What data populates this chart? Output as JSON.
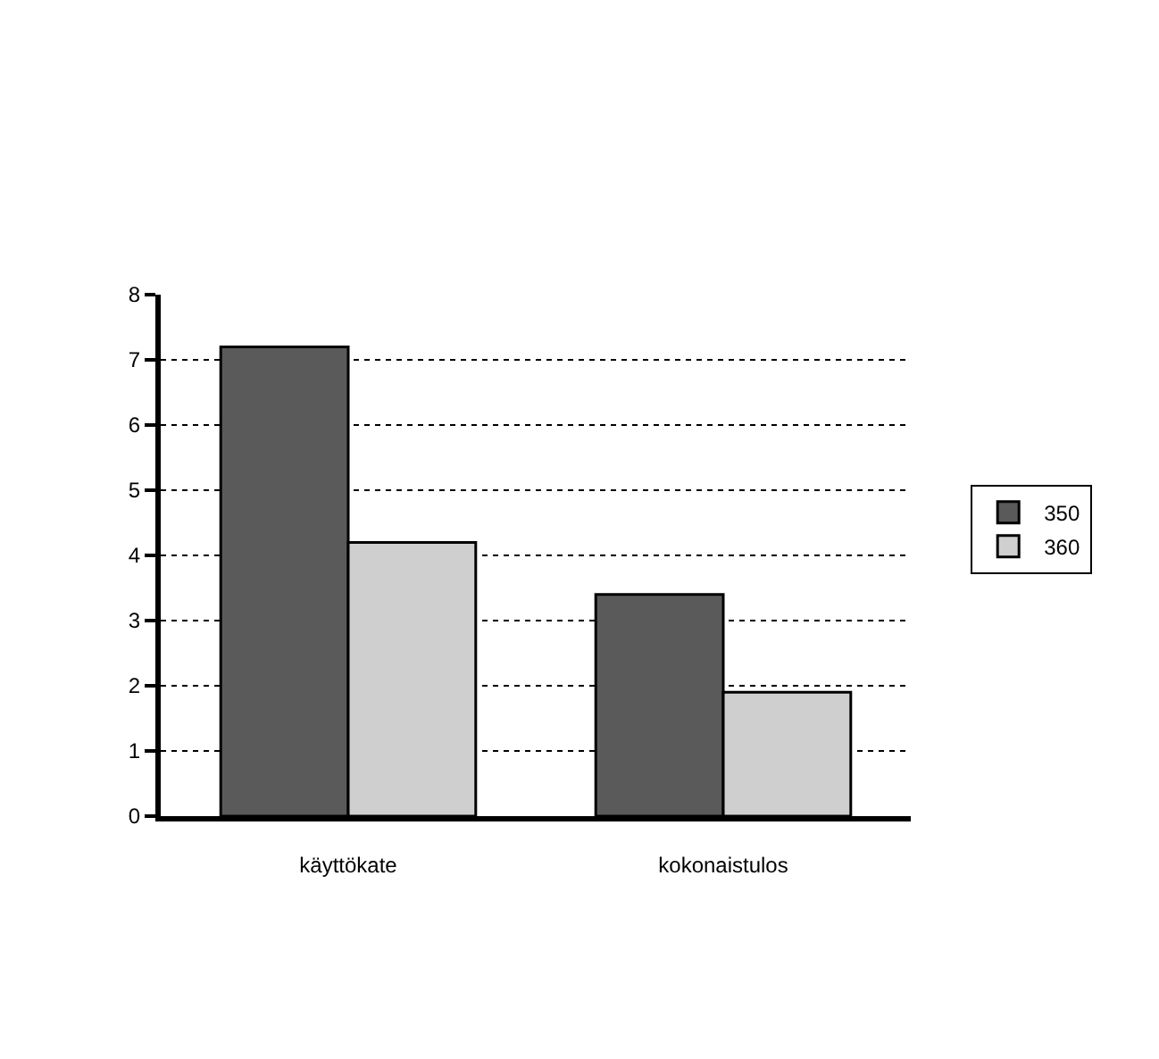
{
  "chart_data": {
    "type": "bar",
    "categories": [
      "käyttökate",
      "kokonaistulos"
    ],
    "series": [
      {
        "name": "350",
        "color": "#5a5a5a",
        "values": [
          7.2,
          3.4
        ]
      },
      {
        "name": "360",
        "color": "#cfcfcf",
        "values": [
          4.2,
          1.9
        ]
      }
    ],
    "ylim": [
      0,
      8
    ],
    "yticks": [
      0,
      1,
      2,
      3,
      4,
      5,
      6,
      7,
      8
    ],
    "grid": "y",
    "line_style": "dotted",
    "legend": "right"
  }
}
